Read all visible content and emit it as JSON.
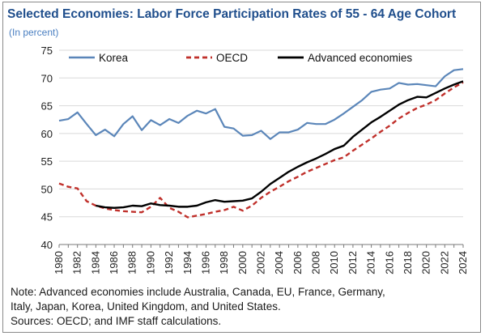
{
  "title": "Selected Economies: Labor Force Participation Rates of 55 - 64 Age Cohort",
  "subtitle": "(In percent)",
  "note_lines": [
    "Note: Advanced economies include Australia, Canada, EU, France, Germany,",
    "Italy, Japan, Korea, United Kingdom, and United States.",
    "Sources: OECD; and IMF staff calculations."
  ],
  "colors": {
    "korea": "#5b86b9",
    "oecd": "#c0302b",
    "advanced": "#000000",
    "title": "#1f4e8c"
  },
  "chart_data": {
    "type": "line",
    "title": "Selected Economies: Labor Force Participation Rates of 55 - 64 Age Cohort",
    "ylabel": "(In percent)",
    "xlabel": "",
    "ylim": [
      40,
      75
    ],
    "yticks": [
      40,
      45,
      50,
      55,
      60,
      65,
      70,
      75
    ],
    "xlim": [
      1980,
      2024
    ],
    "xticks": [
      1980,
      1982,
      1984,
      1986,
      1988,
      1990,
      1992,
      1994,
      1996,
      1998,
      2000,
      2002,
      2004,
      2006,
      2008,
      2010,
      2012,
      2014,
      2016,
      2018,
      2020,
      2022,
      2024
    ],
    "grid": true,
    "legend_position": "top",
    "series": [
      {
        "name": "Korea",
        "style": "solid",
        "x": [
          1980,
          1981,
          1982,
          1983,
          1984,
          1985,
          1986,
          1987,
          1988,
          1989,
          1990,
          1991,
          1992,
          1993,
          1994,
          1995,
          1996,
          1997,
          1998,
          1999,
          2000,
          2001,
          2002,
          2003,
          2004,
          2005,
          2006,
          2007,
          2008,
          2009,
          2010,
          2011,
          2012,
          2013,
          2014,
          2015,
          2016,
          2017,
          2018,
          2019,
          2020,
          2021,
          2022,
          2023,
          2024
        ],
        "values": [
          62.3,
          62.6,
          63.8,
          61.7,
          59.7,
          60.7,
          59.5,
          61.7,
          63.1,
          60.6,
          62.4,
          61.5,
          62.6,
          61.9,
          63.2,
          64.1,
          63.6,
          64.4,
          61.2,
          60.9,
          59.6,
          59.7,
          60.5,
          59.0,
          60.2,
          60.2,
          60.7,
          61.9,
          61.7,
          61.7,
          62.5,
          63.6,
          64.8,
          66.0,
          67.5,
          67.9,
          68.1,
          69.1,
          68.8,
          68.9,
          68.7,
          68.5,
          70.3,
          71.4,
          71.6
        ]
      },
      {
        "name": "OECD",
        "style": "dashed",
        "x": [
          1980,
          1981,
          1982,
          1983,
          1984,
          1985,
          1986,
          1987,
          1988,
          1989,
          1990,
          1991,
          1992,
          1993,
          1994,
          1995,
          1996,
          1997,
          1998,
          1999,
          2000,
          2001,
          2002,
          2003,
          2004,
          2005,
          2006,
          2007,
          2008,
          2009,
          2010,
          2011,
          2012,
          2013,
          2014,
          2015,
          2016,
          2017,
          2018,
          2019,
          2020,
          2021,
          2022,
          2023,
          2024
        ],
        "values": [
          51.0,
          50.4,
          50.1,
          47.8,
          47.0,
          46.5,
          46.2,
          46.0,
          45.9,
          45.8,
          46.8,
          48.4,
          46.6,
          45.9,
          44.9,
          45.2,
          45.5,
          45.9,
          46.2,
          46.8,
          46.1,
          47.0,
          48.4,
          49.5,
          50.4,
          51.4,
          52.2,
          53.1,
          53.8,
          54.5,
          55.2,
          55.7,
          56.9,
          58.0,
          59.1,
          60.3,
          61.4,
          62.7,
          63.7,
          64.6,
          65.2,
          66.0,
          67.2,
          68.3,
          69.2
        ]
      },
      {
        "name": "Advanced economies",
        "style": "solid",
        "x": [
          1980,
          1981,
          1982,
          1983,
          1984,
          1985,
          1986,
          1987,
          1988,
          1989,
          1990,
          1991,
          1992,
          1993,
          1994,
          1995,
          1996,
          1997,
          1998,
          1999,
          2000,
          2001,
          2002,
          2003,
          2004,
          2005,
          2006,
          2007,
          2008,
          2009,
          2010,
          2011,
          2012,
          2013,
          2014,
          2015,
          2016,
          2017,
          2018,
          2019,
          2020,
          2021,
          2022,
          2023,
          2024
        ],
        "values": [
          null,
          null,
          null,
          null,
          47.0,
          46.7,
          46.6,
          46.7,
          47.0,
          46.9,
          47.4,
          47.1,
          47.0,
          46.8,
          46.8,
          47.0,
          47.6,
          48.0,
          47.7,
          47.8,
          47.9,
          48.3,
          49.5,
          50.9,
          52.0,
          53.1,
          54.0,
          54.8,
          55.5,
          56.3,
          57.2,
          57.8,
          59.4,
          60.7,
          62.0,
          63.0,
          64.1,
          65.2,
          66.0,
          66.6,
          66.5,
          67.3,
          68.1,
          68.8,
          69.4
        ]
      }
    ]
  }
}
